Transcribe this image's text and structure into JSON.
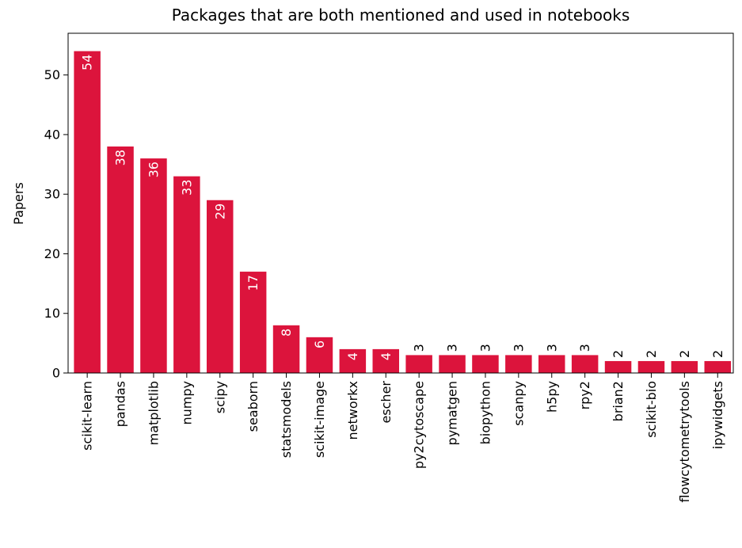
{
  "chart_data": {
    "type": "bar",
    "title": "Packages that are both mentioned and used in notebooks",
    "xlabel": "",
    "ylabel": "Papers",
    "ylim": [
      0,
      57
    ],
    "yticks": [
      0,
      10,
      20,
      30,
      40,
      50
    ],
    "grid": false,
    "legend": "none",
    "bar_color": "#dc143c",
    "categories": [
      "scikit-learn",
      "pandas",
      "matplotlib",
      "numpy",
      "scipy",
      "seaborn",
      "statsmodels",
      "scikit-image",
      "networkx",
      "escher",
      "py2cytoscape",
      "pymatgen",
      "biopython",
      "scanpy",
      "h5py",
      "rpy2",
      "brian2",
      "scikit-bio",
      "flowcytometrytools",
      "ipywidgets"
    ],
    "values": [
      54,
      38,
      36,
      33,
      29,
      17,
      8,
      6,
      4,
      4,
      3,
      3,
      3,
      3,
      3,
      3,
      2,
      2,
      2,
      2
    ],
    "data_labels": [
      "54",
      "38",
      "36",
      "33",
      "29",
      "17",
      "8",
      "6",
      "4",
      "4",
      "3",
      "3",
      "3",
      "3",
      "3",
      "3",
      "2",
      "2",
      "2",
      "2"
    ]
  }
}
